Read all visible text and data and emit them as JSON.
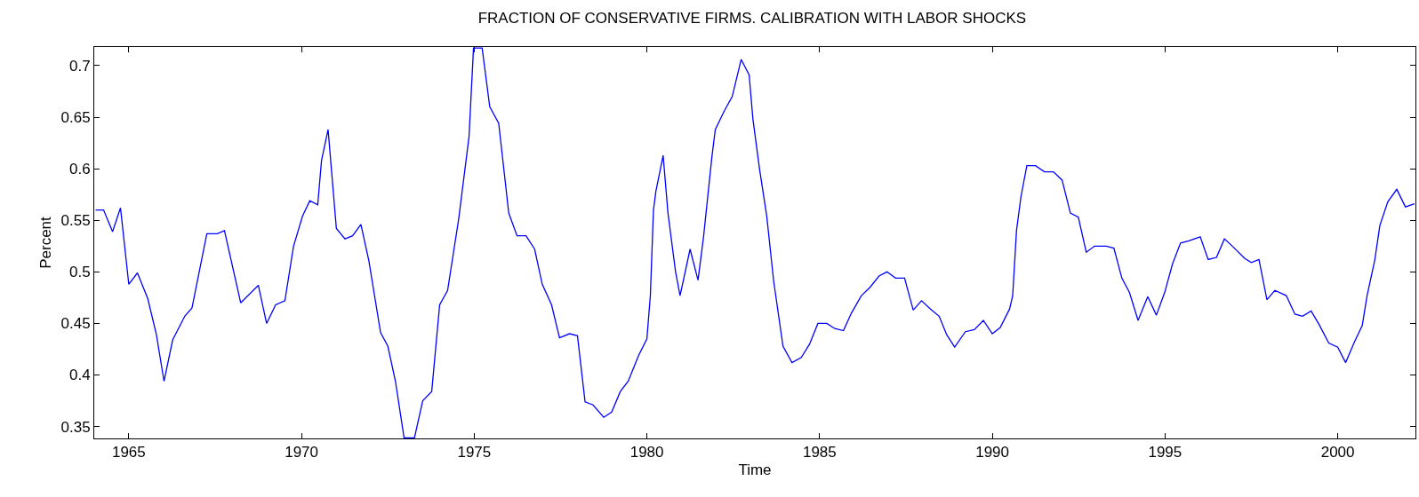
{
  "chart_data": {
    "type": "line",
    "title": "FRACTION OF CONSERVATIVE FIRMS. CALIBRATION WITH LABOR SHOCKS",
    "xlabel": "Time",
    "ylabel": "Percent",
    "x": [
      1964.04,
      1964.27,
      1964.53,
      1964.76,
      1965.0,
      1965.25,
      1965.55,
      1965.8,
      1966.02,
      1966.27,
      1966.62,
      1966.83,
      1967.26,
      1967.56,
      1967.77,
      1968.24,
      1968.75,
      1968.99,
      1969.25,
      1969.52,
      1969.77,
      1970.03,
      1970.24,
      1970.47,
      1970.58,
      1970.77,
      1971.01,
      1971.26,
      1971.48,
      1971.72,
      1971.95,
      1972.29,
      1972.5,
      1972.72,
      1972.97,
      1973.27,
      1973.51,
      1973.77,
      1974.0,
      1974.23,
      1974.55,
      1974.85,
      1974.98,
      1975.23,
      1975.45,
      1975.71,
      1976.0,
      1976.24,
      1976.5,
      1976.75,
      1976.97,
      1977.24,
      1977.47,
      1977.76,
      1977.99,
      1978.21,
      1978.44,
      1978.75,
      1978.98,
      1979.23,
      1979.46,
      1979.76,
      1980.0,
      1980.1,
      1980.19,
      1980.26,
      1980.47,
      1980.61,
      1980.83,
      1980.96,
      1981.25,
      1981.48,
      1981.64,
      1981.88,
      1981.98,
      1982.24,
      1982.47,
      1982.73,
      1982.96,
      1983.07,
      1983.26,
      1983.47,
      1983.67,
      1983.94,
      1984.2,
      1984.47,
      1984.71,
      1984.95,
      1985.21,
      1985.44,
      1985.69,
      1985.92,
      1986.21,
      1986.46,
      1986.72,
      1986.95,
      1987.2,
      1987.46,
      1987.71,
      1987.95,
      1988.21,
      1988.46,
      1988.68,
      1988.91,
      1989.22,
      1989.48,
      1989.74,
      1990.0,
      1990.23,
      1990.5,
      1990.59,
      1990.7,
      1990.83,
      1991.0,
      1991.25,
      1991.51,
      1991.77,
      1992.02,
      1992.26,
      1992.49,
      1992.72,
      1992.96,
      1993.3,
      1993.52,
      1993.75,
      1993.97,
      1994.22,
      1994.5,
      1994.75,
      1994.99,
      1995.22,
      1995.45,
      1995.69,
      1996.02,
      1996.25,
      1996.49,
      1996.72,
      1997.01,
      1997.31,
      1997.5,
      1997.72,
      1997.95,
      1998.18,
      1998.51,
      1998.76,
      1998.98,
      1999.23,
      1999.46,
      1999.74,
      2000.0,
      2000.23,
      2000.47,
      2000.71,
      2000.85,
      2001.07,
      2001.22,
      2001.45,
      2001.71,
      2001.96,
      2002.22
    ],
    "series": [
      {
        "color": "#0000ff",
        "values": [
          0.56,
          0.56,
          0.539,
          0.562,
          0.488,
          0.499,
          0.474,
          0.439,
          0.394,
          0.434,
          0.457,
          0.465,
          0.537,
          0.537,
          0.54,
          0.47,
          0.487,
          0.45,
          0.468,
          0.472,
          0.525,
          0.554,
          0.569,
          0.565,
          0.608,
          0.638,
          0.542,
          0.532,
          0.535,
          0.546,
          0.511,
          0.441,
          0.428,
          0.394,
          0.339,
          0.339,
          0.375,
          0.384,
          0.468,
          0.482,
          0.551,
          0.631,
          0.717,
          0.717,
          0.66,
          0.644,
          0.557,
          0.535,
          0.535,
          0.522,
          0.488,
          0.468,
          0.436,
          0.44,
          0.438,
          0.374,
          0.371,
          0.359,
          0.364,
          0.384,
          0.394,
          0.419,
          0.435,
          0.477,
          0.56,
          0.578,
          0.613,
          0.557,
          0.5,
          0.477,
          0.522,
          0.492,
          0.534,
          0.611,
          0.638,
          0.656,
          0.67,
          0.706,
          0.691,
          0.648,
          0.6,
          0.554,
          0.491,
          0.428,
          0.412,
          0.417,
          0.43,
          0.45,
          0.45,
          0.445,
          0.443,
          0.46,
          0.477,
          0.485,
          0.496,
          0.5,
          0.494,
          0.494,
          0.463,
          0.472,
          0.464,
          0.457,
          0.439,
          0.427,
          0.442,
          0.444,
          0.453,
          0.44,
          0.446,
          0.464,
          0.477,
          0.54,
          0.573,
          0.603,
          0.603,
          0.597,
          0.597,
          0.589,
          0.557,
          0.553,
          0.519,
          0.525,
          0.525,
          0.523,
          0.494,
          0.48,
          0.453,
          0.476,
          0.458,
          0.48,
          0.508,
          0.528,
          0.53,
          0.534,
          0.512,
          0.514,
          0.532,
          0.523,
          0.513,
          0.509,
          0.512,
          0.473,
          0.482,
          0.477,
          0.459,
          0.457,
          0.462,
          0.449,
          0.431,
          0.427,
          0.412,
          0.431,
          0.448,
          0.477,
          0.511,
          0.545,
          0.568,
          0.58,
          0.563,
          0.566
        ]
      }
    ],
    "xlim": [
      1964,
      2002.25
    ],
    "xticks": [
      1965,
      1970,
      1975,
      1980,
      1985,
      1990,
      1995,
      2000
    ],
    "ylim": [
      0.3385,
      0.718
    ],
    "yticks": [
      0.35,
      0.4,
      0.45,
      0.5,
      0.55,
      0.6,
      0.65,
      0.7
    ],
    "marker": "none",
    "line_style": "solid"
  }
}
